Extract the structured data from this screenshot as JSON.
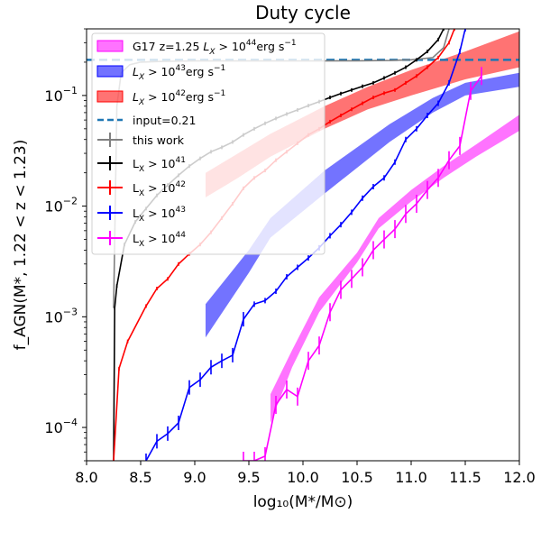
{
  "chart_data": {
    "type": "line",
    "title": "Duty cycle",
    "xlabel": "log₁₀(M*/M⊙)",
    "ylabel": "f_AGN(M*, 1.22 < z < 1.23)",
    "xlim": [
      8.0,
      12.0
    ],
    "ylim": [
      5e-05,
      0.4
    ],
    "yscale": "log",
    "grid": false,
    "legend_position": "top-left",
    "x_ticks": [
      "8.0",
      "8.5",
      "9.0",
      "9.5",
      "10.0",
      "10.5",
      "11.0",
      "11.5",
      "12.0"
    ],
    "y_ticks": [
      {
        "value": 0.0001,
        "base": "10",
        "exp": "−4"
      },
      {
        "value": 0.001,
        "base": "10",
        "exp": "−3"
      },
      {
        "value": 0.01,
        "base": "10",
        "exp": "−2"
      },
      {
        "value": 0.1,
        "base": "10",
        "exp": "−1"
      }
    ],
    "reference_line": {
      "name": "input=0.21",
      "y": 0.21,
      "color": "#1f77b4"
    },
    "bands": [
      {
        "name": "G17 z=1.25 L_X > 10^44 erg s^-1",
        "color": "#ff00ff",
        "opacity": 0.55,
        "x": [
          9.7,
          9.9,
          10.15,
          10.5,
          10.7,
          11.0,
          11.3,
          11.6,
          12.0
        ],
        "lower": [
          0.00011,
          0.00035,
          0.0011,
          0.0031,
          0.0063,
          0.011,
          0.018,
          0.028,
          0.048
        ],
        "upper": [
          0.0002,
          0.0005,
          0.0015,
          0.0038,
          0.0078,
          0.014,
          0.023,
          0.036,
          0.067
        ]
      },
      {
        "name": "L_X > 10^43 erg s^-1",
        "color": "#0000ff",
        "opacity": 0.55,
        "x": [
          9.1,
          9.5,
          9.7,
          10.2,
          10.8,
          11.2,
          11.5,
          12.0
        ],
        "lower": [
          0.00065,
          0.0025,
          0.0052,
          0.013,
          0.038,
          0.07,
          0.1,
          0.12
        ],
        "upper": [
          0.0013,
          0.004,
          0.0078,
          0.021,
          0.055,
          0.095,
          0.13,
          0.16
        ]
      },
      {
        "name": "L_X > 10^42 erg s^-1",
        "color": "#ff0000",
        "opacity": 0.55,
        "x": [
          9.1,
          9.4,
          9.7,
          10.2,
          10.6,
          11.0,
          11.5,
          12.0
        ],
        "lower": [
          0.012,
          0.018,
          0.028,
          0.05,
          0.075,
          0.1,
          0.14,
          0.18
        ],
        "upper": [
          0.02,
          0.03,
          0.045,
          0.08,
          0.12,
          0.17,
          0.25,
          0.38
        ]
      }
    ],
    "series": [
      {
        "name": "this work",
        "color": "#808080",
        "x": [
          8.25,
          8.28,
          8.32,
          8.4,
          8.5,
          8.7,
          9.0,
          9.5,
          10.0,
          10.5,
          10.8,
          11.0,
          11.2,
          11.3,
          11.35
        ],
        "y": [
          0.0012,
          0.08,
          0.16,
          0.19,
          0.2,
          0.203,
          0.205,
          0.205,
          0.205,
          0.206,
          0.207,
          0.21,
          0.22,
          0.27,
          0.4
        ]
      },
      {
        "name": "L_X > 10^41",
        "color": "#000000",
        "x": [
          8.25,
          8.26,
          8.28,
          8.35,
          8.45,
          8.55,
          8.65,
          8.75,
          8.85,
          8.95,
          9.05,
          9.15,
          9.25,
          9.35,
          9.45,
          9.55,
          9.65,
          9.75,
          9.85,
          9.95,
          10.05,
          10.15,
          10.25,
          10.35,
          10.45,
          10.55,
          10.65,
          10.75,
          10.85,
          10.95,
          11.05,
          11.15,
          11.25,
          11.3
        ],
        "y": [
          5e-05,
          0.0012,
          0.0019,
          0.0045,
          0.0072,
          0.0095,
          0.0125,
          0.0155,
          0.019,
          0.023,
          0.027,
          0.031,
          0.034,
          0.038,
          0.044,
          0.05,
          0.056,
          0.062,
          0.068,
          0.074,
          0.081,
          0.088,
          0.096,
          0.104,
          0.112,
          0.121,
          0.13,
          0.144,
          0.16,
          0.18,
          0.21,
          0.25,
          0.32,
          0.4
        ]
      },
      {
        "name": "L_X > 10^42",
        "color": "#ff0000",
        "x": [
          8.25,
          8.3,
          8.38,
          8.55,
          8.65,
          8.75,
          8.85,
          8.95,
          9.05,
          9.15,
          9.25,
          9.35,
          9.45,
          9.55,
          9.65,
          9.75,
          9.85,
          9.95,
          10.05,
          10.15,
          10.25,
          10.35,
          10.45,
          10.55,
          10.65,
          10.75,
          10.85,
          10.95,
          11.05,
          11.15,
          11.25,
          11.35,
          11.4
        ],
        "y": [
          5e-05,
          0.00034,
          0.0006,
          0.00125,
          0.0018,
          0.0022,
          0.003,
          0.0037,
          0.0045,
          0.0058,
          0.0078,
          0.0105,
          0.0145,
          0.018,
          0.021,
          0.026,
          0.031,
          0.037,
          0.044,
          0.05,
          0.058,
          0.066,
          0.075,
          0.085,
          0.096,
          0.105,
          0.112,
          0.13,
          0.15,
          0.18,
          0.22,
          0.3,
          0.4
        ]
      },
      {
        "name": "L_X > 10^43",
        "color": "#0000ff",
        "x": [
          8.55,
          8.65,
          8.75,
          8.85,
          8.95,
          9.05,
          9.15,
          9.25,
          9.35,
          9.45,
          9.55,
          9.65,
          9.75,
          9.85,
          9.95,
          10.05,
          10.15,
          10.25,
          10.35,
          10.45,
          10.55,
          10.65,
          10.75,
          10.85,
          10.95,
          11.05,
          11.15,
          11.25,
          11.35,
          11.45,
          11.5
        ],
        "y": [
          5e-05,
          7.5e-05,
          8.8e-05,
          0.00011,
          0.00023,
          0.00027,
          0.00035,
          0.0004,
          0.00045,
          0.00095,
          0.0013,
          0.0014,
          0.0017,
          0.0023,
          0.0028,
          0.0034,
          0.0042,
          0.0054,
          0.0068,
          0.0088,
          0.0118,
          0.015,
          0.018,
          0.025,
          0.04,
          0.05,
          0.066,
          0.085,
          0.13,
          0.25,
          0.4
        ]
      },
      {
        "name": "L_X > 10^44",
        "color": "#ff00ff",
        "x": [
          9.45,
          9.55,
          9.65,
          9.75,
          9.85,
          9.95,
          10.05,
          10.15,
          10.25,
          10.35,
          10.45,
          10.55,
          10.65,
          10.75,
          10.85,
          10.95,
          11.05,
          11.15,
          11.25,
          11.35,
          11.45,
          11.55,
          11.65
        ],
        "y": [
          5e-05,
          5e-05,
          5.5e-05,
          0.00016,
          0.00022,
          0.00019,
          0.0004,
          0.00055,
          0.0011,
          0.00175,
          0.0022,
          0.0028,
          0.004,
          0.005,
          0.0062,
          0.0085,
          0.0105,
          0.014,
          0.018,
          0.026,
          0.035,
          0.11,
          0.15
        ]
      }
    ],
    "legend": [
      {
        "label": "G17 z=1.25 ",
        "math": "L",
        "sub": "X",
        "rest": " > 10",
        "sup": "44",
        "unit": "erg s",
        "unit_sup": "−1",
        "kind": "patch",
        "color": "#ff00ff",
        "opacity": 0.55
      },
      {
        "label": "",
        "math": "L",
        "sub": "X",
        "rest": " > 10",
        "sup": "43",
        "unit": "erg s",
        "unit_sup": "−1",
        "kind": "patch",
        "color": "#0000ff",
        "opacity": 0.55
      },
      {
        "label": "",
        "math": "L",
        "sub": "X",
        "rest": " > 10",
        "sup": "42",
        "unit": "erg s",
        "unit_sup": "−1",
        "kind": "patch",
        "color": "#ff0000",
        "opacity": 0.55
      },
      {
        "label": "input=0.21",
        "kind": "dash",
        "color": "#1f77b4"
      },
      {
        "label": "this work",
        "kind": "errline",
        "color": "#808080"
      },
      {
        "label": "L",
        "sub": "X",
        "rest": " > 10",
        "sup": "41",
        "kind": "errline",
        "color": "#000000"
      },
      {
        "label": "L",
        "sub": "X",
        "rest": " > 10",
        "sup": "42",
        "kind": "errline",
        "color": "#ff0000"
      },
      {
        "label": "L",
        "sub": "X",
        "rest": " > 10",
        "sup": "43",
        "kind": "errline",
        "color": "#0000ff"
      },
      {
        "label": "L",
        "sub": "X",
        "rest": " > 10",
        "sup": "44",
        "kind": "errline",
        "color": "#ff00ff"
      }
    ]
  }
}
